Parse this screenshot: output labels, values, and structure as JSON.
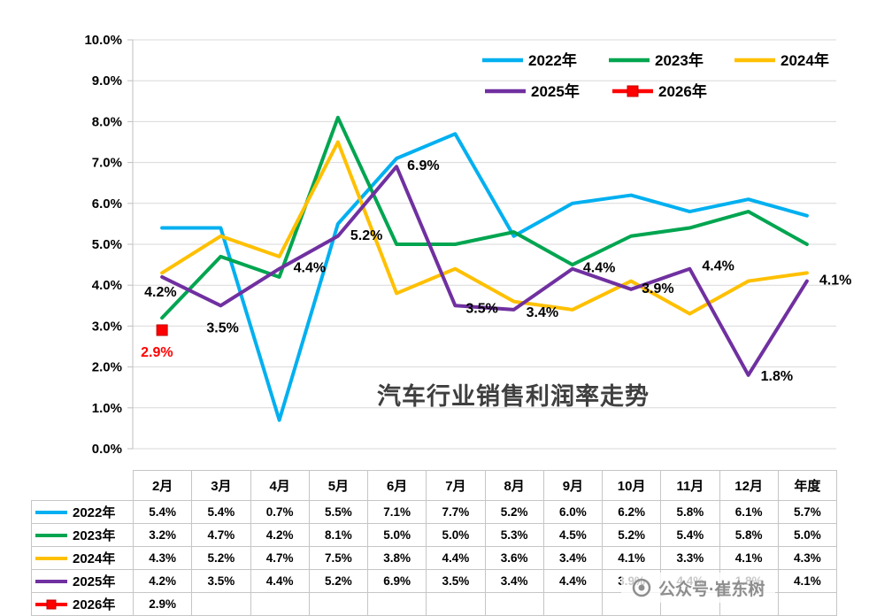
{
  "title": "汽车行业销售利润率走势",
  "watermark": {
    "text": "公众号·崔东树",
    "icon": "aperture-icon"
  },
  "chart_data": {
    "type": "line",
    "categories": [
      "2月",
      "3月",
      "4月",
      "5月",
      "6月",
      "7月",
      "8月",
      "9月",
      "10月",
      "11月",
      "12月",
      "年度"
    ],
    "ylim": [
      0,
      10
    ],
    "ytick_step": 1,
    "ytick_labels": [
      "0.0%",
      "1.0%",
      "2.0%",
      "3.0%",
      "4.0%",
      "5.0%",
      "6.0%",
      "7.0%",
      "8.0%",
      "9.0%",
      "10.0%"
    ],
    "grid": "horizontal",
    "legend_position": "top-right-inside",
    "series": [
      {
        "name": "2022年",
        "color": "#00B0F0",
        "values": [
          5.4,
          5.4,
          0.7,
          5.5,
          7.1,
          7.7,
          5.2,
          6.0,
          6.2,
          5.8,
          6.1,
          5.7
        ]
      },
      {
        "name": "2023年",
        "color": "#00A550",
        "values": [
          3.2,
          4.7,
          4.2,
          8.1,
          5.0,
          5.0,
          5.3,
          4.5,
          5.2,
          5.4,
          5.8,
          5.0
        ]
      },
      {
        "name": "2024年",
        "color": "#FFC000",
        "values": [
          4.3,
          5.2,
          4.7,
          7.5,
          3.8,
          4.4,
          3.6,
          3.4,
          4.1,
          3.3,
          4.1,
          4.3
        ]
      },
      {
        "name": "2025年",
        "color": "#7030A0",
        "values": [
          4.2,
          3.5,
          4.4,
          5.2,
          6.9,
          3.5,
          3.4,
          4.4,
          3.9,
          4.4,
          1.8,
          4.1
        ],
        "point_labels": [
          "4.2%",
          "3.5%",
          "4.4%",
          "5.2%",
          "6.9%",
          "3.5%",
          "3.4%",
          "4.4%",
          "3.9%",
          "4.4%",
          "1.8%",
          "4.1%"
        ]
      },
      {
        "name": "2026年",
        "color": "#FF0000",
        "marker": "square",
        "label_color": "#FF0000",
        "values": [
          2.9,
          null,
          null,
          null,
          null,
          null,
          null,
          null,
          null,
          null,
          null,
          null
        ],
        "point_labels": [
          "2.9%",
          null,
          null,
          null,
          null,
          null,
          null,
          null,
          null,
          null,
          null,
          null
        ]
      }
    ]
  },
  "table": {
    "corner_label": "",
    "columns": [
      "2月",
      "3月",
      "4月",
      "5月",
      "6月",
      "7月",
      "8月",
      "9月",
      "10月",
      "11月",
      "12月",
      "年度"
    ],
    "rows": [
      {
        "label": "2022年",
        "cells": [
          "5.4%",
          "5.4%",
          "0.7%",
          "5.5%",
          "7.1%",
          "7.7%",
          "5.2%",
          "6.0%",
          "6.2%",
          "5.8%",
          "6.1%",
          "5.7%"
        ]
      },
      {
        "label": "2023年",
        "cells": [
          "3.2%",
          "4.7%",
          "4.2%",
          "8.1%",
          "5.0%",
          "5.0%",
          "5.3%",
          "4.5%",
          "5.2%",
          "5.4%",
          "5.8%",
          "5.0%"
        ]
      },
      {
        "label": "2024年",
        "cells": [
          "4.3%",
          "5.2%",
          "4.7%",
          "7.5%",
          "3.8%",
          "4.4%",
          "3.6%",
          "3.4%",
          "4.1%",
          "3.3%",
          "4.1%",
          "4.3%"
        ]
      },
      {
        "label": "2025年",
        "cells": [
          "4.2%",
          "3.5%",
          "4.4%",
          "5.2%",
          "6.9%",
          "3.5%",
          "3.4%",
          "4.4%",
          "3.9%",
          "4.4%",
          "1.8%",
          "4.1%"
        ]
      },
      {
        "label": "2026年",
        "cells": [
          "2.9%",
          "",
          "",
          "",
          "",
          "",
          "",
          "",
          "",
          "",
          "",
          ""
        ]
      }
    ]
  }
}
